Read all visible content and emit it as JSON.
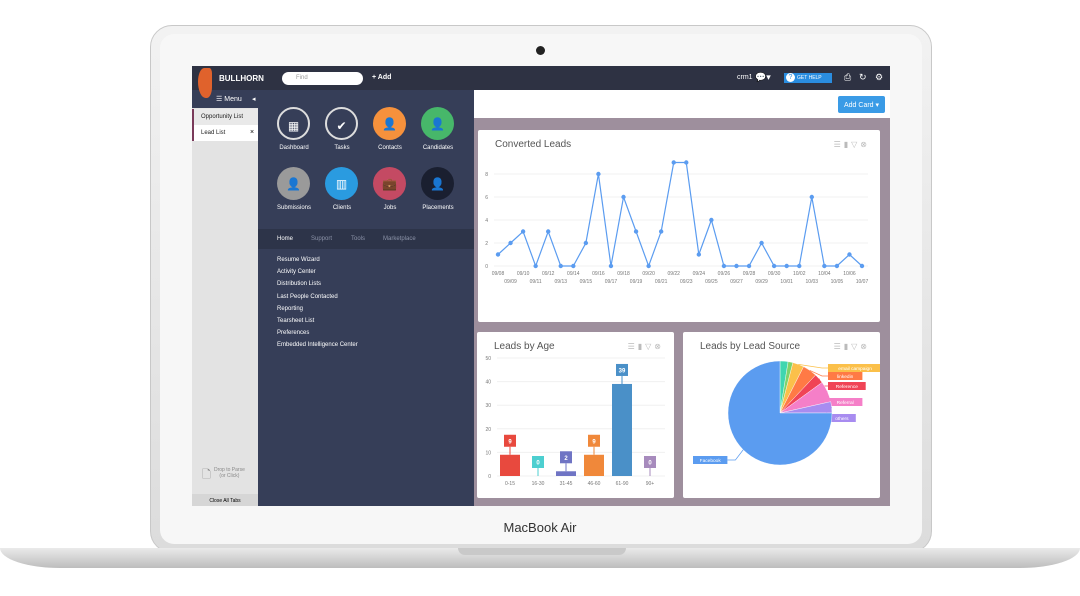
{
  "device": {
    "label": "MacBook Air"
  },
  "topbar": {
    "logo": "BULLHORN",
    "find_placeholder": "Find",
    "add": "+ Add",
    "user": "crm1",
    "help": "GET HELP"
  },
  "leftcol": {
    "menu": "Menu",
    "tabs": [
      "Opportunity List",
      "Lead List"
    ],
    "close_tab": "×",
    "drop": "Drop to Parse",
    "drop2": "(or Click)",
    "close_all": "Close All Tabs"
  },
  "menu": {
    "tiles": [
      {
        "label": "Dashboard",
        "color": "#363e58",
        "icon": "grid-icon"
      },
      {
        "label": "Tasks",
        "color": "#363e58",
        "icon": "check-icon"
      },
      {
        "label": "Contacts",
        "color": "#f6913c",
        "icon": "person-icon"
      },
      {
        "label": "Candidates",
        "color": "#47b76a",
        "icon": "person-icon"
      },
      {
        "label": "Submissions",
        "color": "#9a9a9a",
        "icon": "person-icon"
      },
      {
        "label": "Clients",
        "color": "#2a9be0",
        "icon": "building-icon"
      },
      {
        "label": "Jobs",
        "color": "#c44a63",
        "icon": "briefcase-icon"
      },
      {
        "label": "Placements",
        "color": "#1a1f30",
        "icon": "person-icon"
      }
    ],
    "tabs": [
      "Home",
      "Support",
      "Tools",
      "Marketplace"
    ],
    "links": [
      "Resume Wizard",
      "Activity Center",
      "Distribution Lists",
      "Last People Contacted",
      "Reporting",
      "Tearsheet List",
      "Preferences",
      "Embedded Intelligence Center"
    ]
  },
  "main": {
    "add_card": "Add Card ▾"
  },
  "chart_data": [
    {
      "type": "line",
      "title": "Converted Leads",
      "color": "#5b9cf0",
      "x": [
        "09/08",
        "09/09",
        "09/10",
        "09/11",
        "09/12",
        "09/13",
        "09/14",
        "09/15",
        "09/16",
        "09/17",
        "09/18",
        "09/19",
        "09/20",
        "09/21",
        "09/22",
        "09/23",
        "09/24",
        "09/25",
        "09/26",
        "09/27",
        "09/28",
        "09/29",
        "09/30",
        "10/01",
        "10/02",
        "10/03",
        "10/04",
        "10/05",
        "10/06",
        "10/07"
      ],
      "values": [
        1,
        2,
        3,
        0,
        3,
        0,
        0,
        2,
        8,
        0,
        6,
        3,
        0,
        3,
        9,
        9,
        1,
        4,
        0,
        0,
        0,
        2,
        0,
        0,
        0,
        6,
        0,
        0,
        1,
        0
      ],
      "yticks": [
        0,
        2,
        4,
        6,
        8
      ],
      "ylim": [
        0,
        9
      ],
      "grid": true
    },
    {
      "type": "bar",
      "title": "Leads by Age",
      "categories": [
        "0-15",
        "16-30",
        "31-45",
        "46-60",
        "61-90",
        "90+"
      ],
      "values": [
        9,
        0,
        2,
        9,
        39,
        0
      ],
      "colors": [
        "#e8493e",
        "#4dcfd0",
        "#6f74c4",
        "#f0883a",
        "#4a90c8",
        "#a78bbd"
      ],
      "yticks": [
        0,
        10,
        20,
        30,
        40,
        50
      ],
      "ylim": [
        0,
        50
      ],
      "grid": true
    },
    {
      "type": "pie",
      "title": "Leads by Lead Source",
      "slices": [
        {
          "label": "",
          "value": 2.5,
          "color": "#3fd6b0"
        },
        {
          "label": "",
          "value": 1.5,
          "color": "#7ed36b"
        },
        {
          "label": "email campaign",
          "value": 3.5,
          "color": "#fbc04a"
        },
        {
          "label": "linkedin",
          "value": 4.5,
          "color": "#ff7a45"
        },
        {
          "label": "Reference",
          "value": 3,
          "color": "#f04456"
        },
        {
          "label": "Referral",
          "value": 6.5,
          "color": "#f57fc8"
        },
        {
          "label": "others",
          "value": 3.5,
          "color": "#a88cf0"
        },
        {
          "label": "Facebook",
          "value": 75,
          "color": "#5b9cf0"
        }
      ]
    }
  ]
}
